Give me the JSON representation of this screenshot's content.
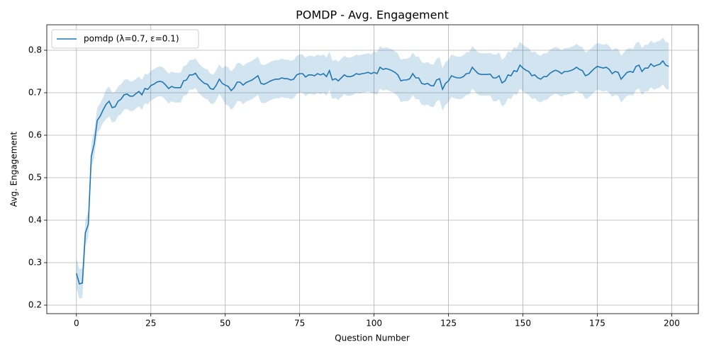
{
  "chart_data": {
    "type": "line",
    "title": "POMDP - Avg. Engagement",
    "x_label": "Question Number",
    "y_label": "Avg. Engagement",
    "xlim": [
      -9.95,
      208.95
    ],
    "ylim": [
      0.18,
      0.86
    ],
    "xticks": [
      0,
      25,
      50,
      75,
      100,
      125,
      150,
      175,
      200
    ],
    "yticks": [
      0.2,
      0.3,
      0.4,
      0.5,
      0.6,
      0.7,
      0.8
    ],
    "grid": true,
    "legend": "upper-left",
    "x": [
      0,
      1,
      2,
      3,
      4,
      5,
      6,
      7,
      8,
      9,
      10,
      11,
      12,
      13,
      14,
      15,
      16,
      17,
      18,
      19,
      20,
      21,
      22,
      23,
      24,
      25,
      26,
      27,
      28,
      29,
      30,
      31,
      32,
      33,
      34,
      35,
      36,
      37,
      38,
      39,
      40,
      41,
      42,
      43,
      44,
      45,
      46,
      47,
      48,
      49,
      50,
      51,
      52,
      53,
      54,
      55,
      56,
      57,
      58,
      59,
      60,
      61,
      62,
      63,
      64,
      65,
      66,
      67,
      68,
      69,
      70,
      71,
      72,
      73,
      74,
      75,
      76,
      77,
      78,
      79,
      80,
      81,
      82,
      83,
      84,
      85,
      86,
      87,
      88,
      89,
      90,
      91,
      92,
      93,
      94,
      95,
      96,
      97,
      98,
      99,
      100,
      101,
      102,
      103,
      104,
      105,
      106,
      107,
      108,
      109,
      110,
      111,
      112,
      113,
      114,
      115,
      116,
      117,
      118,
      119,
      120,
      121,
      122,
      123,
      124,
      125,
      126,
      127,
      128,
      129,
      130,
      131,
      132,
      133,
      134,
      135,
      136,
      137,
      138,
      139,
      140,
      141,
      142,
      143,
      144,
      145,
      146,
      147,
      148,
      149,
      150,
      151,
      152,
      153,
      154,
      155,
      156,
      157,
      158,
      159,
      160,
      161,
      162,
      163,
      164,
      165,
      166,
      167,
      168,
      169,
      170,
      171,
      172,
      173,
      174,
      175,
      176,
      177,
      178,
      179,
      180,
      181,
      182,
      183,
      184,
      185,
      186,
      187,
      188,
      189,
      190,
      191,
      192,
      193,
      194,
      195,
      196,
      197,
      198,
      199
    ],
    "series": [
      {
        "name": "pomdp (λ=0.7, ε=0.1)",
        "color": "#1f77b4",
        "values": [
          0.275,
          0.25,
          0.252,
          0.37,
          0.39,
          0.55,
          0.58,
          0.635,
          0.645,
          0.66,
          0.673,
          0.68,
          0.665,
          0.667,
          0.68,
          0.685,
          0.695,
          0.697,
          0.692,
          0.692,
          0.698,
          0.703,
          0.695,
          0.71,
          0.708,
          0.717,
          0.72,
          0.725,
          0.727,
          0.725,
          0.718,
          0.71,
          0.715,
          0.712,
          0.712,
          0.712,
          0.728,
          0.73,
          0.742,
          0.742,
          0.746,
          0.735,
          0.728,
          0.722,
          0.72,
          0.71,
          0.708,
          0.718,
          0.732,
          0.722,
          0.718,
          0.715,
          0.705,
          0.712,
          0.725,
          0.725,
          0.718,
          0.724,
          0.727,
          0.73,
          0.735,
          0.74,
          0.722,
          0.72,
          0.723,
          0.727,
          0.73,
          0.732,
          0.732,
          0.735,
          0.733,
          0.733,
          0.73,
          0.732,
          0.742,
          0.745,
          0.745,
          0.737,
          0.742,
          0.742,
          0.74,
          0.745,
          0.742,
          0.745,
          0.738,
          0.752,
          0.73,
          0.733,
          0.728,
          0.735,
          0.742,
          0.738,
          0.738,
          0.74,
          0.745,
          0.743,
          0.745,
          0.746,
          0.748,
          0.745,
          0.748,
          0.745,
          0.76,
          0.755,
          0.757,
          0.755,
          0.752,
          0.748,
          0.742,
          0.728,
          0.73,
          0.73,
          0.733,
          0.745,
          0.735,
          0.735,
          0.722,
          0.72,
          0.722,
          0.717,
          0.716,
          0.73,
          0.733,
          0.708,
          0.722,
          0.728,
          0.74,
          0.737,
          0.735,
          0.735,
          0.738,
          0.745,
          0.746,
          0.76,
          0.752,
          0.745,
          0.743,
          0.743,
          0.743,
          0.744,
          0.735,
          0.735,
          0.74,
          0.723,
          0.728,
          0.742,
          0.74,
          0.752,
          0.75,
          0.765,
          0.758,
          0.753,
          0.75,
          0.74,
          0.742,
          0.735,
          0.732,
          0.738,
          0.738,
          0.745,
          0.75,
          0.753,
          0.75,
          0.745,
          0.75,
          0.75,
          0.752,
          0.755,
          0.76,
          0.755,
          0.752,
          0.74,
          0.743,
          0.75,
          0.757,
          0.762,
          0.76,
          0.758,
          0.76,
          0.755,
          0.745,
          0.75,
          0.748,
          0.732,
          0.74,
          0.748,
          0.75,
          0.748,
          0.762,
          0.765,
          0.75,
          0.758,
          0.758,
          0.768,
          0.762,
          0.765,
          0.767,
          0.775,
          0.765,
          0.762
        ],
        "band": [
          0.035,
          0.035,
          0.035,
          0.03,
          0.03,
          0.03,
          0.03,
          0.03,
          0.03,
          0.03,
          0.035,
          0.035,
          0.035,
          0.035,
          0.035,
          0.035,
          0.035,
          0.035,
          0.035,
          0.035,
          0.035,
          0.035,
          0.035,
          0.035,
          0.035,
          0.035,
          0.035,
          0.035,
          0.035,
          0.035,
          0.035,
          0.035,
          0.035,
          0.035,
          0.035,
          0.035,
          0.035,
          0.035,
          0.035,
          0.035,
          0.035,
          0.035,
          0.035,
          0.035,
          0.035,
          0.035,
          0.035,
          0.035,
          0.035,
          0.035,
          0.045,
          0.045,
          0.045,
          0.045,
          0.045,
          0.045,
          0.045,
          0.045,
          0.045,
          0.045,
          0.045,
          0.045,
          0.045,
          0.045,
          0.045,
          0.045,
          0.045,
          0.045,
          0.045,
          0.045,
          0.045,
          0.045,
          0.045,
          0.045,
          0.045,
          0.045,
          0.045,
          0.045,
          0.045,
          0.045,
          0.045,
          0.045,
          0.045,
          0.045,
          0.045,
          0.045,
          0.045,
          0.045,
          0.045,
          0.045,
          0.045,
          0.045,
          0.045,
          0.045,
          0.045,
          0.045,
          0.045,
          0.045,
          0.045,
          0.045,
          0.05,
          0.05,
          0.05,
          0.05,
          0.05,
          0.05,
          0.05,
          0.05,
          0.05,
          0.05,
          0.05,
          0.05,
          0.05,
          0.05,
          0.05,
          0.05,
          0.05,
          0.05,
          0.05,
          0.05,
          0.05,
          0.05,
          0.05,
          0.05,
          0.05,
          0.05,
          0.05,
          0.05,
          0.05,
          0.05,
          0.05,
          0.05,
          0.05,
          0.05,
          0.05,
          0.05,
          0.05,
          0.05,
          0.05,
          0.05,
          0.055,
          0.055,
          0.055,
          0.055,
          0.055,
          0.055,
          0.055,
          0.055,
          0.055,
          0.055,
          0.055,
          0.055,
          0.055,
          0.055,
          0.055,
          0.055,
          0.055,
          0.055,
          0.055,
          0.055,
          0.055,
          0.055,
          0.055,
          0.055,
          0.055,
          0.055,
          0.055,
          0.055,
          0.055,
          0.055,
          0.055,
          0.055,
          0.055,
          0.055,
          0.055,
          0.055,
          0.055,
          0.055,
          0.055,
          0.055,
          0.055,
          0.055,
          0.055,
          0.055,
          0.055,
          0.055,
          0.055,
          0.055,
          0.055,
          0.055,
          0.055,
          0.055,
          0.055,
          0.055,
          0.055,
          0.055,
          0.055,
          0.055,
          0.055,
          0.055
        ]
      }
    ]
  }
}
